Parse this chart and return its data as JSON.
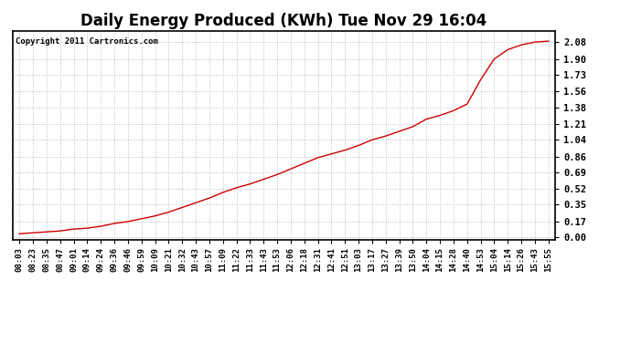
{
  "title": "Daily Energy Produced (KWh) Tue Nov 29 16:04",
  "copyright_text": "Copyright 2011 Cartronics.com",
  "line_color": "#cc0000",
  "background_color": "#ffffff",
  "plot_bg_color": "#ffffff",
  "grid_color": "#bbbbbb",
  "title_fontsize": 12,
  "tick_fontsize": 6.5,
  "copyright_fontsize": 6.5,
  "ytick_values": [
    0.0,
    0.17,
    0.35,
    0.52,
    0.69,
    0.86,
    1.04,
    1.21,
    1.38,
    1.56,
    1.73,
    1.9,
    2.08
  ],
  "x_labels": [
    "08:03",
    "08:23",
    "08:35",
    "08:47",
    "09:01",
    "09:14",
    "09:24",
    "09:36",
    "09:46",
    "09:59",
    "10:09",
    "10:21",
    "10:32",
    "10:43",
    "10:57",
    "11:09",
    "11:22",
    "11:33",
    "11:43",
    "11:53",
    "12:06",
    "12:18",
    "12:31",
    "12:41",
    "12:51",
    "13:03",
    "13:17",
    "13:27",
    "13:39",
    "13:50",
    "14:04",
    "14:15",
    "14:28",
    "14:40",
    "14:53",
    "15:04",
    "15:14",
    "15:26",
    "15:43",
    "15:55"
  ],
  "y_values": [
    0.04,
    0.05,
    0.06,
    0.07,
    0.09,
    0.1,
    0.12,
    0.15,
    0.17,
    0.2,
    0.23,
    0.27,
    0.32,
    0.37,
    0.42,
    0.48,
    0.53,
    0.57,
    0.62,
    0.67,
    0.73,
    0.79,
    0.85,
    0.89,
    0.93,
    0.98,
    1.04,
    1.08,
    1.13,
    1.18,
    1.26,
    1.3,
    1.35,
    1.42,
    1.68,
    1.9,
    2.0,
    2.05,
    2.08,
    2.09
  ],
  "ylim": [
    -0.02,
    2.2
  ],
  "border_color": "#000000",
  "line_width": 1.0
}
